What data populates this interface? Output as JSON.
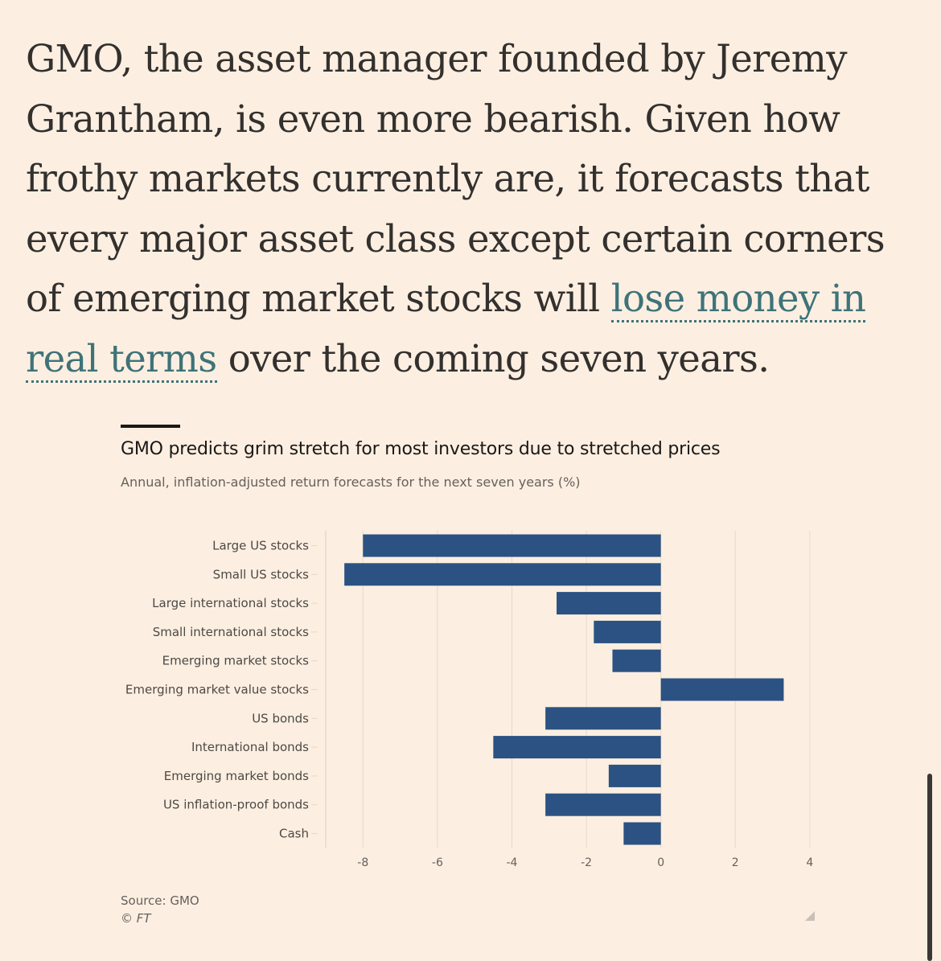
{
  "article": {
    "text_before_link": "GMO, the asset manager founded by Jeremy Grantham, is even more bearish. Given how frothy markets currently are, it forecasts that every major asset class except certain corners of emerging market stocks will ",
    "link_text": "lose money in real terms",
    "text_after_link": " over the coming seven years."
  },
  "chart_data": {
    "type": "bar",
    "orientation": "horizontal",
    "title": "GMO predicts grim stretch for most investors due to stretched prices",
    "subtitle": "Annual, inflation-adjusted return forecasts for the next seven years (%)",
    "categories": [
      "Large US stocks",
      "Small US stocks",
      "Large international stocks",
      "Small international stocks",
      "Emerging market stocks",
      "Emerging market value stocks",
      "US bonds",
      "International bonds",
      "Emerging market bonds",
      "US inflation-proof bonds",
      "Cash"
    ],
    "values": [
      -8.0,
      -8.5,
      -2.8,
      -1.8,
      -1.3,
      3.3,
      -3.1,
      -4.5,
      -1.4,
      -3.1,
      -1.0
    ],
    "xlim": [
      -9,
      4.5
    ],
    "xticks": [
      -8,
      -6,
      -4,
      -2,
      0,
      2,
      4
    ],
    "xtick_labels": [
      "-8",
      "-6",
      "-4",
      "-2",
      "0",
      "2",
      "4"
    ],
    "xlabel": "",
    "ylabel": "",
    "grid": true,
    "bar_color": "#2b5282"
  },
  "source": {
    "text": "Source: GMO",
    "copyright": "© FT"
  },
  "icons": {
    "expand": "expand-icon",
    "scrollbar": "scrollbar"
  }
}
